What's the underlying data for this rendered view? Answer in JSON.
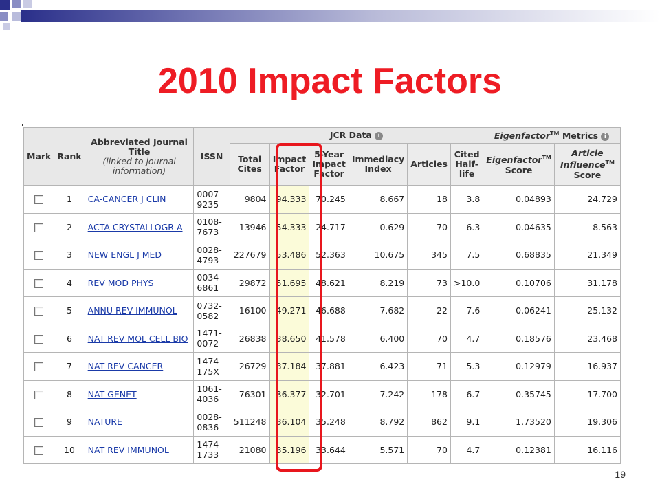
{
  "slide": {
    "title": "2010 Impact Factors",
    "page_number": "19"
  },
  "table": {
    "group_headers": {
      "jcr": "JCR Data",
      "eigen": "Eigenfactor",
      "eigen_tm": "TM",
      "eigen_metrics": "Metrics"
    },
    "headers": {
      "mark": "Mark",
      "rank": "Rank",
      "title_main": "Abbreviated Journal Title",
      "title_sub": "(linked to journal information)",
      "issn": "ISSN",
      "total_cites": "Total Cites",
      "impact_factor": "Impact Factor",
      "five_year": "5-Year Impact Factor",
      "immediacy": "Immediacy Index",
      "articles": "Articles",
      "half_life": "Cited Half-life",
      "eigen_score": "Eigenfactor",
      "eigen_score_tm": "TM",
      "eigen_score_2": "Score",
      "article_influence": "Article Influence",
      "article_influence_tm": "TM",
      "article_influence_2": "Score"
    },
    "rows": [
      {
        "rank": "1",
        "title": "CA-CANCER J CLIN",
        "issn1": "0007-",
        "issn2": "9235",
        "total_cites": "9804",
        "impact_factor": "94.333",
        "five_year": "70.245",
        "immediacy": "8.667",
        "articles": "18",
        "half_life": "3.8",
        "eigenfactor": "0.04893",
        "article_influence": "24.729"
      },
      {
        "rank": "2",
        "title": "ACTA CRYSTALLOGR A",
        "issn1": "0108-",
        "issn2": "7673",
        "total_cites": "13946",
        "impact_factor": "54.333",
        "five_year": "24.717",
        "immediacy": "0.629",
        "articles": "70",
        "half_life": "6.3",
        "eigenfactor": "0.04635",
        "article_influence": "8.563"
      },
      {
        "rank": "3",
        "title": "NEW ENGL J MED",
        "issn1": "0028-",
        "issn2": "4793",
        "total_cites": "227679",
        "impact_factor": "53.486",
        "five_year": "52.363",
        "immediacy": "10.675",
        "articles": "345",
        "half_life": "7.5",
        "eigenfactor": "0.68835",
        "article_influence": "21.349"
      },
      {
        "rank": "4",
        "title": "REV MOD PHYS",
        "issn1": "0034-",
        "issn2": "6861",
        "total_cites": "29872",
        "impact_factor": "51.695",
        "five_year": "48.621",
        "immediacy": "8.219",
        "articles": "73",
        "half_life": ">10.0",
        "eigenfactor": "0.10706",
        "article_influence": "31.178"
      },
      {
        "rank": "5",
        "title": "ANNU REV IMMUNOL",
        "issn1": "0732-",
        "issn2": "0582",
        "total_cites": "16100",
        "impact_factor": "49.271",
        "five_year": "46.688",
        "immediacy": "7.682",
        "articles": "22",
        "half_life": "7.6",
        "eigenfactor": "0.06241",
        "article_influence": "25.132"
      },
      {
        "rank": "6",
        "title": "NAT REV MOL CELL BIO",
        "issn1": "1471-",
        "issn2": "0072",
        "total_cites": "26838",
        "impact_factor": "38.650",
        "five_year": "41.578",
        "immediacy": "6.400",
        "articles": "70",
        "half_life": "4.7",
        "eigenfactor": "0.18576",
        "article_influence": "23.468"
      },
      {
        "rank": "7",
        "title": "NAT REV CANCER",
        "issn1": "1474-",
        "issn2": "175X",
        "total_cites": "26729",
        "impact_factor": "37.184",
        "five_year": "37.881",
        "immediacy": "6.423",
        "articles": "71",
        "half_life": "5.3",
        "eigenfactor": "0.12979",
        "article_influence": "16.937"
      },
      {
        "rank": "8",
        "title": "NAT GENET",
        "issn1": "1061-",
        "issn2": "4036",
        "total_cites": "76301",
        "impact_factor": "36.377",
        "five_year": "32.701",
        "immediacy": "7.242",
        "articles": "178",
        "half_life": "6.7",
        "eigenfactor": "0.35745",
        "article_influence": "17.700"
      },
      {
        "rank": "9",
        "title": "NATURE",
        "issn1": "0028-",
        "issn2": "0836",
        "total_cites": "511248",
        "impact_factor": "36.104",
        "five_year": "35.248",
        "immediacy": "8.792",
        "articles": "862",
        "half_life": "9.1",
        "eigenfactor": "1.73520",
        "article_influence": "19.306"
      },
      {
        "rank": "10",
        "title": "NAT REV IMMUNOL",
        "issn1": "1474-",
        "issn2": "1733",
        "total_cites": "21080",
        "impact_factor": "35.196",
        "five_year": "33.644",
        "immediacy": "5.571",
        "articles": "70",
        "half_life": "4.7",
        "eigenfactor": "0.12381",
        "article_influence": "16.116"
      }
    ]
  }
}
